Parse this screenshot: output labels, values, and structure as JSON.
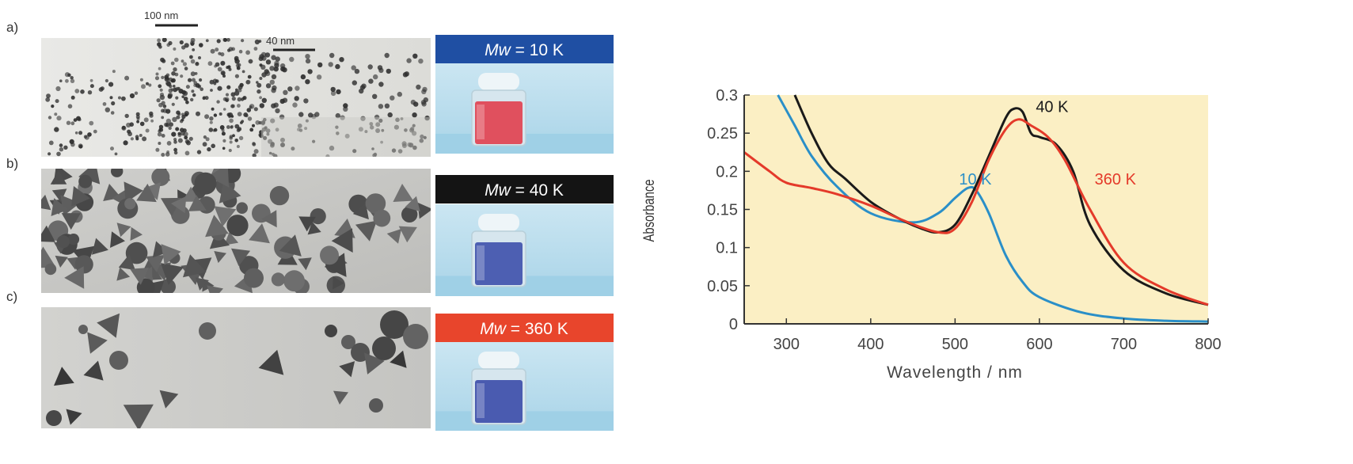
{
  "panels": [
    {
      "label": "a)",
      "badge_prefix": "Mw",
      "badge_value": " = 10 K",
      "badge_color": "#1f4fa3",
      "liquid_color": "#e0505e",
      "scale_bars": [
        "100 nm",
        "40 nm"
      ]
    },
    {
      "label": "b)",
      "badge_prefix": "Mw",
      "badge_value": " = 40 K",
      "badge_color": "#141414",
      "liquid_color": "#4d5fb2"
    },
    {
      "label": "c)",
      "badge_prefix": "Mw",
      "badge_value": " = 360 K",
      "badge_color": "#e8452c",
      "liquid_color": "#4a5bb0"
    }
  ],
  "chart_data": {
    "type": "line",
    "xlabel": "Wavelength / nm",
    "ylabel": "Absorbance",
    "xlim": [
      250,
      800
    ],
    "ylim": [
      0,
      0.3
    ],
    "xticks": [
      300,
      400,
      500,
      600,
      700,
      800
    ],
    "yticks": [
      0,
      0.05,
      0.1,
      0.15,
      0.2,
      0.25,
      0.3
    ],
    "ytick_labels": [
      "0",
      "0.05",
      "0.1",
      "0.15",
      "0.2",
      "0.25",
      "0.3"
    ],
    "plot_background": "#fbefc4",
    "grid": false,
    "series": [
      {
        "name": "10 K",
        "color": "#2a8fc8",
        "x": [
          290,
          310,
          330,
          360,
          400,
          450,
          480,
          500,
          515,
          525,
          540,
          560,
          580,
          600,
          650,
          700,
          750,
          800
        ],
        "y": [
          0.3,
          0.26,
          0.22,
          0.18,
          0.145,
          0.133,
          0.145,
          0.165,
          0.178,
          0.175,
          0.145,
          0.09,
          0.055,
          0.035,
          0.015,
          0.007,
          0.004,
          0.003
        ]
      },
      {
        "name": "40 K",
        "color": "#1a1a1a",
        "x": [
          310,
          330,
          350,
          370,
          400,
          430,
          460,
          480,
          500,
          520,
          540,
          560,
          570,
          580,
          590,
          600,
          620,
          640,
          660,
          700,
          750,
          800
        ],
        "y": [
          0.3,
          0.25,
          0.21,
          0.19,
          0.16,
          0.14,
          0.125,
          0.12,
          0.13,
          0.17,
          0.22,
          0.27,
          0.282,
          0.278,
          0.25,
          0.245,
          0.235,
          0.2,
          0.13,
          0.07,
          0.04,
          0.025
        ]
      },
      {
        "name": "360 K",
        "color": "#e43a2a",
        "x": [
          250,
          280,
          300,
          330,
          360,
          400,
          440,
          480,
          500,
          520,
          540,
          560,
          575,
          590,
          610,
          630,
          660,
          700,
          750,
          800
        ],
        "y": [
          0.225,
          0.2,
          0.185,
          0.178,
          0.17,
          0.155,
          0.135,
          0.12,
          0.125,
          0.16,
          0.215,
          0.255,
          0.268,
          0.26,
          0.245,
          0.215,
          0.15,
          0.08,
          0.045,
          0.025
        ]
      }
    ],
    "annotations": [
      {
        "text": "10 K",
        "x": 524,
        "y": 0.19,
        "color": "#2a8fc8"
      },
      {
        "text": "40 K",
        "x": 615,
        "y": 0.285,
        "color": "#1a1a1a"
      },
      {
        "text": "360 K",
        "x": 690,
        "y": 0.19,
        "color": "#e43a2a"
      }
    ]
  }
}
